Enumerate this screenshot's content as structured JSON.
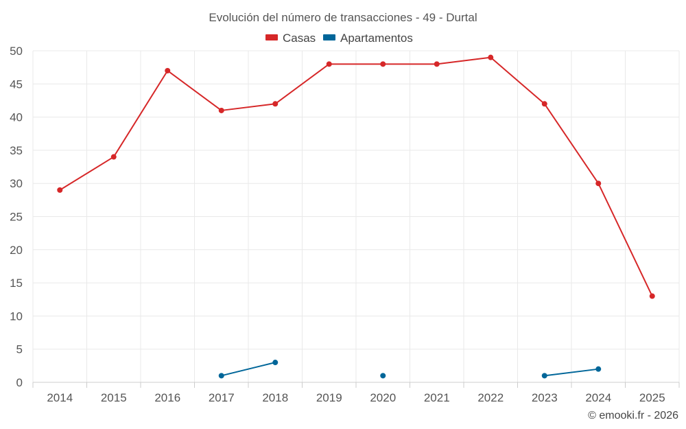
{
  "chart_data": {
    "type": "line",
    "title": "Evolución del número de transacciones - 49 - Durtal",
    "categories": [
      "2014",
      "2015",
      "2016",
      "2017",
      "2018",
      "2019",
      "2020",
      "2021",
      "2022",
      "2023",
      "2024",
      "2025"
    ],
    "ylim": [
      0,
      50
    ],
    "yticks": [
      0,
      5,
      10,
      15,
      20,
      25,
      30,
      35,
      40,
      45,
      50
    ],
    "grid": true,
    "legend_position": "top-center",
    "series": [
      {
        "name": "Casas",
        "color": "#d62728",
        "values": [
          29,
          34,
          47,
          41,
          42,
          48,
          48,
          48,
          49,
          42,
          30,
          13
        ]
      },
      {
        "name": "Apartamentos",
        "color": "#006699",
        "values": [
          null,
          null,
          null,
          1,
          3,
          null,
          1,
          null,
          null,
          1,
          2,
          null
        ]
      }
    ],
    "credit": "© emooki.fr - 2026"
  }
}
